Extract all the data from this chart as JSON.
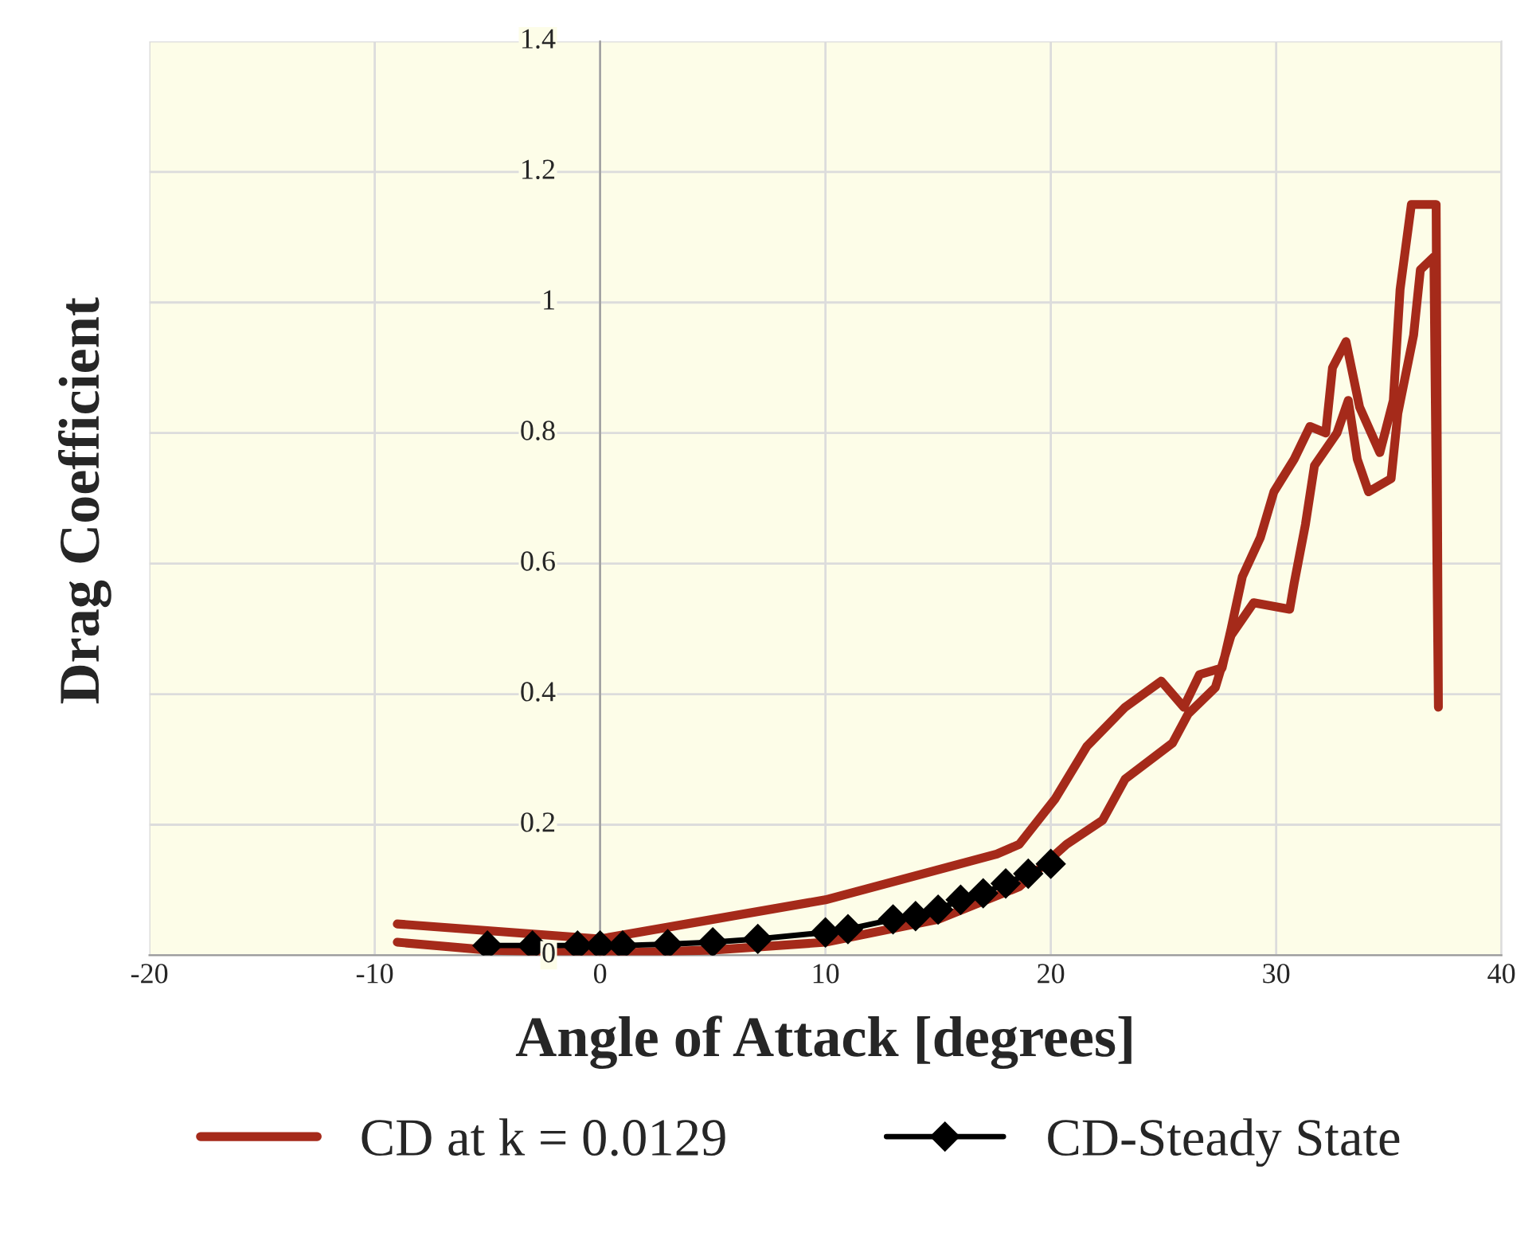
{
  "chart_data": {
    "type": "line",
    "xlabel": "Angle of Attack [degrees]",
    "ylabel": "Drag Coefficient",
    "xlim": [
      -20,
      40
    ],
    "xticks": [
      -20,
      -10,
      0,
      10,
      20,
      30,
      40
    ],
    "ylim": [
      0,
      1.4
    ],
    "yticks": [
      0,
      0.2,
      0.4,
      0.6,
      0.8,
      1,
      1.2,
      1.4
    ],
    "grid": true,
    "legend": "bottom",
    "series": [
      {
        "name": "CD at k = 0.0129",
        "color": "#a52a1a",
        "marker": "none",
        "x": [
          -9,
          -5,
          0,
          5,
          10,
          15,
          18.6,
          20.7,
          22.3,
          23.3,
          25.4,
          26.1,
          27.3,
          28,
          29,
          30.6,
          30.8,
          31.3,
          31.7,
          32.7,
          33.2,
          33.6,
          34.1,
          35.1,
          35.4,
          36.1,
          36.4,
          37,
          37.2,
          37.1,
          36,
          35.5,
          35.2,
          34.6,
          33.7,
          33.1,
          32.5,
          32.2,
          31.5,
          30.8,
          29.9,
          29.3,
          28.5,
          28,
          27.6,
          26.6,
          25.9,
          24.9,
          23.3,
          21.6,
          20.2,
          18.6,
          17.6,
          10,
          0,
          -9
        ],
        "values": [
          0.02,
          0.008,
          0.003,
          0.008,
          0.02,
          0.055,
          0.105,
          0.17,
          0.207,
          0.27,
          0.325,
          0.37,
          0.41,
          0.49,
          0.54,
          0.53,
          0.57,
          0.66,
          0.75,
          0.8,
          0.85,
          0.76,
          0.71,
          0.73,
          0.83,
          0.95,
          1.05,
          1.07,
          0.38,
          1.15,
          1.15,
          1.02,
          0.85,
          0.77,
          0.84,
          0.94,
          0.9,
          0.8,
          0.81,
          0.76,
          0.71,
          0.64,
          0.58,
          0.5,
          0.44,
          0.43,
          0.38,
          0.42,
          0.38,
          0.32,
          0.24,
          0.17,
          0.155,
          0.085,
          0.025,
          0.048
        ]
      },
      {
        "name": "CD-Steady State",
        "color": "#000000",
        "marker": "diamond",
        "x": [
          -5,
          -3,
          -1,
          0,
          1,
          3,
          5,
          7,
          10,
          11,
          13,
          14,
          15,
          16,
          17,
          18,
          19,
          20
        ],
        "values": [
          0.015,
          0.015,
          0.015,
          0.015,
          0.015,
          0.017,
          0.02,
          0.025,
          0.035,
          0.04,
          0.055,
          0.06,
          0.07,
          0.085,
          0.095,
          0.11,
          0.125,
          0.14
        ]
      }
    ]
  }
}
